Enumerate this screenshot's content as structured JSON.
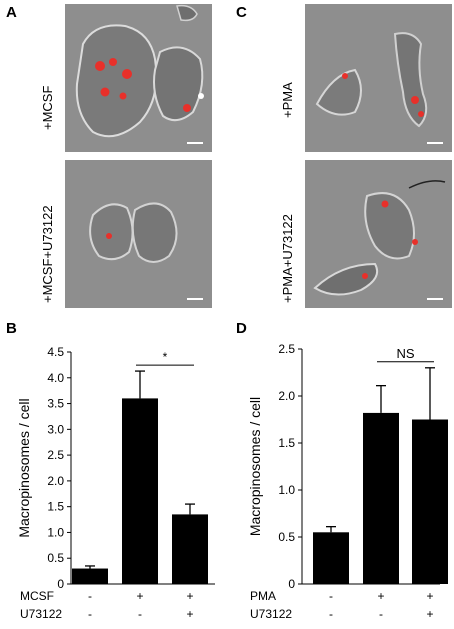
{
  "panels": {
    "A": {
      "letter": "A",
      "top_label": "+MCSF",
      "bottom_label": "+MCSF+U73122"
    },
    "C": {
      "letter": "C",
      "top_label": "+PMA",
      "bottom_label": "+PMA+U73122"
    }
  },
  "colors": {
    "bar": "#000000",
    "particle": "#e8302a",
    "micro_bg": "#8e8e8e"
  },
  "chart_data": [
    {
      "panel": "B",
      "type": "bar",
      "ylabel": "Macropinosomes / cell",
      "ylim": [
        0,
        4.5
      ],
      "yticks": [
        "0",
        "0.5",
        "1.0",
        "1.5",
        "2.0",
        "2.5",
        "3.0",
        "3.5",
        "4.0",
        "4.5"
      ],
      "values": [
        0.3,
        3.6,
        1.35
      ],
      "errors": [
        0.05,
        0.53,
        0.2
      ],
      "conditions": [
        {
          "name": "MCSF",
          "marks": [
            "-",
            "+",
            "+"
          ]
        },
        {
          "name": "U73122",
          "marks": [
            "-",
            "-",
            "+"
          ]
        }
      ],
      "significance": {
        "bars": [
          1,
          2
        ],
        "label": "*"
      }
    },
    {
      "panel": "D",
      "type": "bar",
      "ylabel": "Macropinosomes / cell",
      "ylim": [
        0,
        2.5
      ],
      "yticks": [
        "0",
        "0.5",
        "1.0",
        "1.5",
        "2.0",
        "2.5"
      ],
      "values": [
        0.55,
        1.82,
        1.75
      ],
      "errors": [
        0.06,
        0.29,
        0.55
      ],
      "conditions": [
        {
          "name": "PMA",
          "marks": [
            "-",
            "+",
            "+"
          ]
        },
        {
          "name": "U73122",
          "marks": [
            "-",
            "-",
            "+"
          ]
        }
      ],
      "significance": {
        "bars": [
          1,
          2
        ],
        "label": "NS"
      }
    }
  ]
}
